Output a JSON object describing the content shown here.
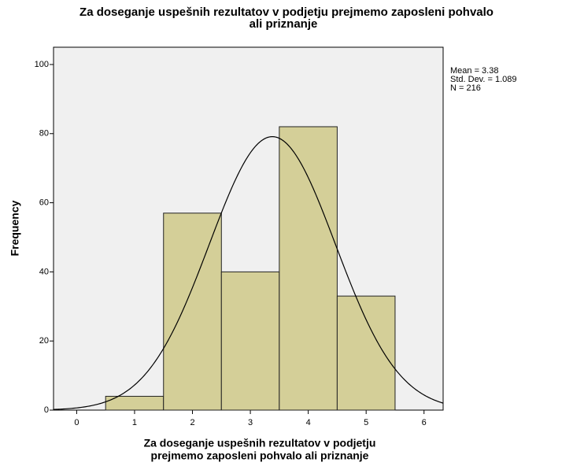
{
  "chart_data": {
    "type": "histogram",
    "title": [
      "Za doseganje uspešnih rezultatov v podjetju prejmemo zaposleni pohvalo",
      "ali priznanje"
    ],
    "xlabel": [
      "Za doseganje uspešnih rezultatov v podjetju",
      "prejmemo zaposleni pohvalo ali priznanje"
    ],
    "ylabel": "Frequency",
    "bins": [
      0.5,
      1.5,
      2.5,
      3.5,
      4.5,
      5.5
    ],
    "counts": [
      4,
      57,
      40,
      82,
      33
    ],
    "color": "#d4cf98",
    "xlim": [
      -0.4,
      6.33
    ],
    "xticks": [
      0,
      1,
      2,
      3,
      4,
      5,
      6
    ],
    "ylim": [
      0,
      105
    ],
    "yticks": [
      0,
      20,
      40,
      60,
      80,
      100
    ],
    "stats": {
      "mean": {
        "value": 3.38,
        "label": "Mean = 3.38"
      },
      "sd": {
        "value": 1.089,
        "label": "Std. Dev. = 1.089"
      },
      "n": {
        "value": 216,
        "label": "N = 216"
      }
    }
  }
}
